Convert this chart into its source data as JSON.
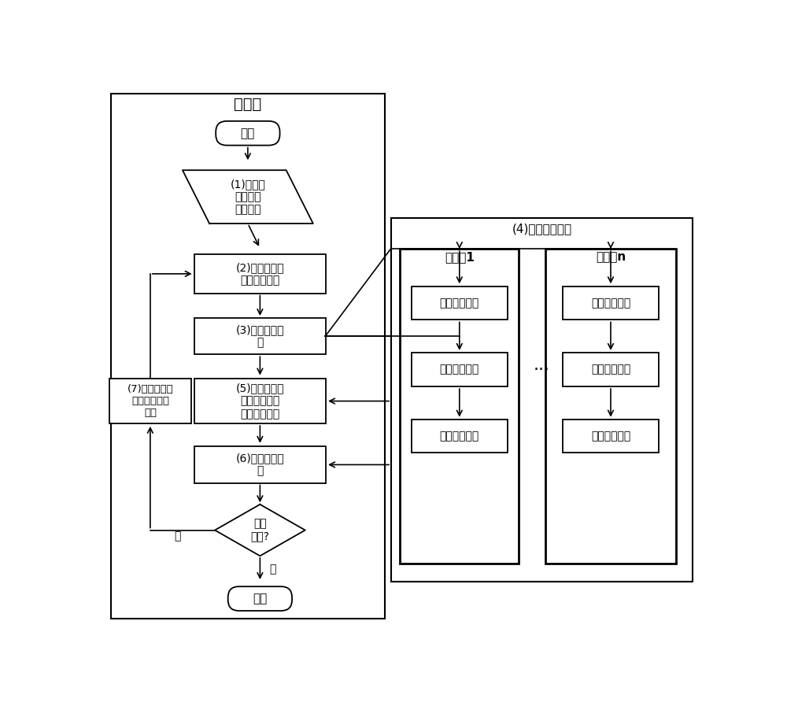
{
  "bg_color": "#ffffff",
  "main_title": "主线程",
  "parallel_title": "(4)并行线程计算",
  "sub1_title": "子线程1",
  "subn_title": "子线程n",
  "start_text": "开始",
  "end_text": "结束",
  "step1_text": "(1)获取路\n网数据和\n车辆数据",
  "step2_text": "(2)计算路段和\n交叉口的阻抗",
  "step3_text": "(3)分配并行线\n程",
  "step5_text": "(5)统计并行线\n程负荷，计算\n均衡分配方案",
  "step6_text": "(6)保存车辆数\n据",
  "step7_text": "(7)更新路网数\n据，新增仿真\n车辆",
  "decision_text": "仿真\n完成?",
  "sub1_1_text": "检索最优路径",
  "sub1_2_text": "决策车辆运动",
  "sub1_3_text": "更新车辆状态",
  "subn_1_text": "检索最优路径",
  "subn_2_text": "决策车辆运动",
  "subn_3_text": "更新车辆状态",
  "yes_text": "是",
  "no_text": "否",
  "dots_text": "···"
}
